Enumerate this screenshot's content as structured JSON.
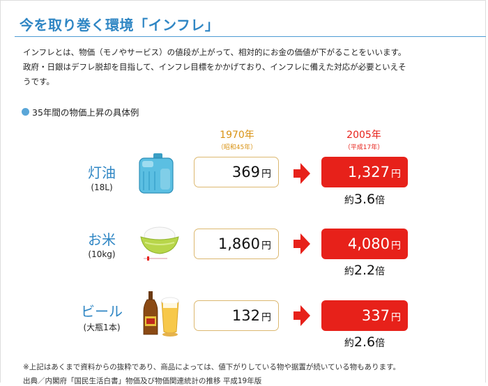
{
  "title": "今を取り巻く環境「インフレ」",
  "intro": [
    "インフレとは、物価（モノやサービス）の値段が上がって、相対的にお金の価値が下がることをいいます。",
    "政府・日銀はデフレ脱却を目指して、インフレ目標をかかげており、インフレに備えた対応が必要といえそ",
    "うです。"
  ],
  "section_title": "35年間の物価上昇の具体例",
  "year_from": {
    "year": "1970年",
    "era": "（昭和45年）"
  },
  "year_to": {
    "year": "2005年",
    "era": "（平成17年）"
  },
  "currency": "円",
  "ratio_prefix": "約",
  "ratio_suffix": "倍",
  "items": [
    {
      "name": "灯油",
      "unit": "(18L)",
      "price_from": "369",
      "price_to": "1,327",
      "ratio": "3.6",
      "icon": "kerosene-tank-icon"
    },
    {
      "name": "お米",
      "unit": "(10kg)",
      "price_from": "1,860",
      "price_to": "4,080",
      "ratio": "2.2",
      "icon": "rice-bowl-icon"
    },
    {
      "name": "ビール",
      "unit": "(大瓶1本)",
      "price_from": "132",
      "price_to": "337",
      "ratio": "2.6",
      "icon": "beer-icon"
    }
  ],
  "note": "※上記はあくまで資料からの抜粋であり、商品によっては、値下がりしている物や据置が続いている物もあります。",
  "source": "出典／内閣府「国民生活白書」物価及び物価関連統計の推移 平成19年版",
  "colors": {
    "accent_blue": "#2f86c4",
    "price_red": "#e7211a",
    "year_orange": "#d99315",
    "box_border": "#dcb870"
  }
}
